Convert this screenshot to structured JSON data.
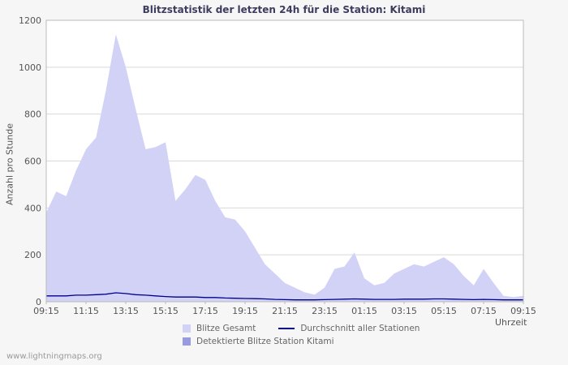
{
  "page": {
    "watermark": "www.lightningmaps.org",
    "background_color": "#f6f6f6",
    "plot_background_color": "#ffffff",
    "grid_color": "#d9d9d9",
    "axis_color": "#bbbbbb",
    "title_color": "#3c3c5e",
    "tick_label_color": "#555555"
  },
  "chart_data": {
    "type": "area",
    "title": "Blitzstatistik der letzten 24h für die Station: Kitami",
    "xlabel": "Uhrzeit",
    "ylabel": "Anzahl pro Stunde",
    "ylim": [
      0,
      1200
    ],
    "ytick_step": 200,
    "grid": true,
    "legend_position": "bottom",
    "x_tick_labels": [
      "09:15",
      "11:15",
      "13:15",
      "15:15",
      "17:15",
      "19:15",
      "21:15",
      "23:15",
      "01:15",
      "03:15",
      "05:15",
      "07:15",
      "09:15"
    ],
    "x": [
      "09:15",
      "09:45",
      "10:15",
      "10:45",
      "11:15",
      "11:45",
      "12:15",
      "12:45",
      "13:15",
      "13:45",
      "14:15",
      "14:45",
      "15:15",
      "15:45",
      "16:15",
      "16:45",
      "17:15",
      "17:45",
      "18:15",
      "18:45",
      "19:15",
      "19:45",
      "20:15",
      "20:45",
      "21:15",
      "21:45",
      "22:15",
      "22:45",
      "23:15",
      "23:45",
      "00:15",
      "00:45",
      "01:15",
      "01:45",
      "02:15",
      "02:45",
      "03:15",
      "03:45",
      "04:15",
      "04:45",
      "05:15",
      "05:45",
      "06:15",
      "06:45",
      "07:15",
      "07:45",
      "08:15",
      "08:45",
      "09:15"
    ],
    "series": [
      {
        "name": "Blitze Gesamt",
        "type": "area",
        "color": "#d2d2f7",
        "values": [
          380,
          470,
          450,
          560,
          650,
          700,
          900,
          1140,
          1000,
          820,
          650,
          660,
          680,
          430,
          480,
          540,
          520,
          430,
          360,
          350,
          300,
          230,
          160,
          120,
          80,
          60,
          40,
          30,
          60,
          140,
          150,
          210,
          100,
          70,
          80,
          120,
          140,
          160,
          150,
          170,
          190,
          160,
          110,
          70,
          140,
          80,
          25,
          20,
          25
        ]
      },
      {
        "name": "Detektierte Blitze Station Kitami",
        "type": "area",
        "color": "#9a9ae0",
        "values": [
          0,
          0,
          0,
          0,
          0,
          0,
          0,
          0,
          0,
          0,
          0,
          0,
          0,
          0,
          0,
          0,
          0,
          0,
          0,
          0,
          0,
          0,
          0,
          0,
          0,
          0,
          0,
          0,
          0,
          0,
          0,
          0,
          0,
          0,
          0,
          0,
          0,
          0,
          0,
          0,
          0,
          0,
          0,
          0,
          0,
          0,
          0,
          0,
          0
        ]
      },
      {
        "name": "Durchschnitt aller Stationen",
        "type": "line",
        "color": "#00008b",
        "values": [
          25,
          25,
          25,
          28,
          28,
          30,
          32,
          38,
          35,
          30,
          28,
          25,
          22,
          20,
          20,
          20,
          18,
          18,
          16,
          15,
          14,
          13,
          12,
          10,
          9,
          8,
          8,
          8,
          9,
          10,
          11,
          12,
          11,
          10,
          10,
          10,
          11,
          11,
          11,
          12,
          12,
          11,
          10,
          9,
          10,
          9,
          8,
          8,
          8
        ]
      }
    ]
  },
  "legend": {
    "items": [
      {
        "label": "Blitze Gesamt",
        "swatch": "square",
        "color": "#d2d2f7"
      },
      {
        "label": "Durchschnitt aller Stationen",
        "swatch": "line",
        "color": "#00008b"
      },
      {
        "label": "Detektierte Blitze Station Kitami",
        "swatch": "square",
        "color": "#9a9ae0"
      }
    ]
  }
}
